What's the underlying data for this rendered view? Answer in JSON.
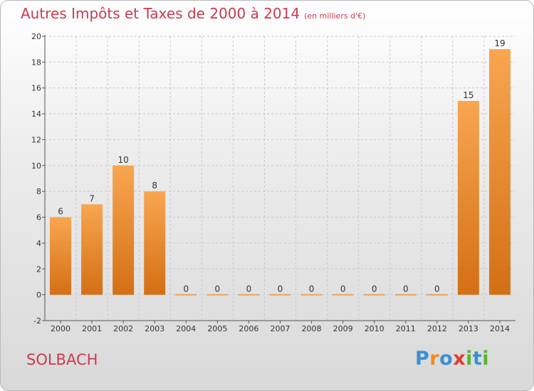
{
  "title": "Autres Impôts et Taxes de 2000 à 2014",
  "subtitle": "(en milliers d'€)",
  "commune": "SOLBACH",
  "logo": {
    "text": "Proxiti",
    "letters": [
      {
        "ch": "P",
        "color": "#3b8fd6"
      },
      {
        "ch": "r",
        "color": "#f08a1c"
      },
      {
        "ch": "o",
        "color": "#3b8fd6"
      },
      {
        "ch": "x",
        "color": "#e33b2f"
      },
      {
        "ch": "i",
        "color": "#58b432"
      },
      {
        "ch": "t",
        "color": "#3b8fd6"
      },
      {
        "ch": "i",
        "color": "#58b432"
      }
    ]
  },
  "colors": {
    "title": "#cc3a4f",
    "bar_light": "#f8a650",
    "bar_dark": "#d46f15",
    "grid": "#c8c8c8"
  },
  "chart_data": {
    "type": "bar",
    "title": "Autres Impôts et Taxes de 2000 à 2014",
    "subtitle": "(en milliers d'€)",
    "xlabel": "",
    "ylabel": "",
    "categories": [
      "2000",
      "2001",
      "2002",
      "2003",
      "2004",
      "2005",
      "2006",
      "2007",
      "2008",
      "2009",
      "2010",
      "2011",
      "2012",
      "2013",
      "2014"
    ],
    "values": [
      6,
      7,
      10,
      8,
      0,
      0,
      0,
      0,
      0,
      0,
      0,
      0,
      0,
      15,
      19
    ],
    "data_labels": [
      "6",
      "7",
      "10",
      "8",
      "0",
      "0",
      "0",
      "0",
      "0",
      "0",
      "0",
      "0",
      "0",
      "15",
      "19"
    ],
    "ylim": [
      -2,
      20
    ],
    "yticks": [
      -2,
      0,
      2,
      4,
      6,
      8,
      10,
      12,
      14,
      16,
      18,
      20
    ],
    "ytick_labels": [
      "-2",
      "0",
      "2",
      "4",
      "6",
      "8",
      "10",
      "12",
      "14",
      "16",
      "18",
      "20"
    ],
    "grid": "horizontal dashed",
    "legend": "none"
  }
}
